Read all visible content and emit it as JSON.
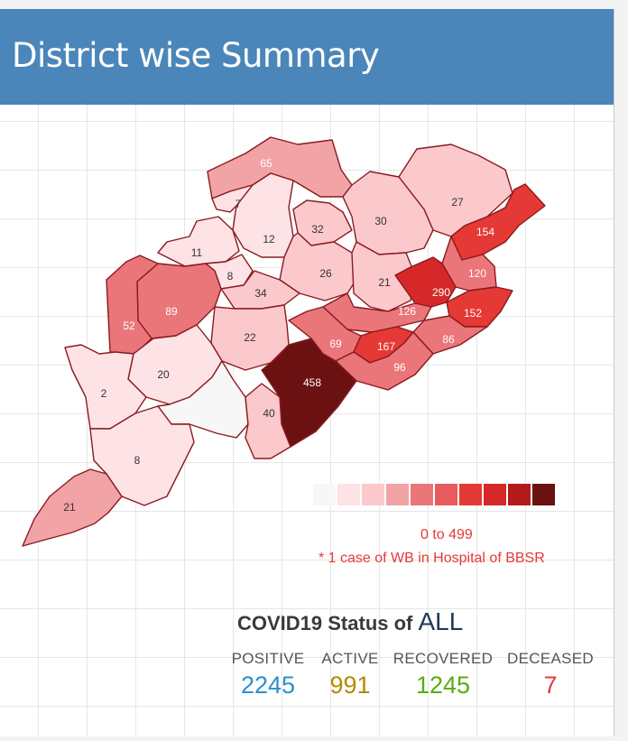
{
  "header": {
    "title": "District wise Summary"
  },
  "map": {
    "legend": {
      "colors": [
        "#f7f7f7",
        "#fde3e5",
        "#fbc9cc",
        "#f2a3a6",
        "#ea7679",
        "#e75b5e",
        "#e53935",
        "#d62828",
        "#b31b1b",
        "#6b1111"
      ],
      "range": "0 to 499",
      "note": "* 1 case of WB in Hospital of BBSR"
    },
    "districts": [
      {
        "label": "65",
        "color": "#f2a3a6",
        "text_color": "#ffffff"
      },
      {
        "label": "7",
        "color": "#fde3e5",
        "text_color": "#333333"
      },
      {
        "label": "27",
        "color": "#fbc9cc",
        "text_color": "#333333"
      },
      {
        "label": "30",
        "color": "#fbc9cc",
        "text_color": "#333333"
      },
      {
        "label": "32",
        "color": "#fbc9cc",
        "text_color": "#333333"
      },
      {
        "label": "12",
        "color": "#fde3e5",
        "text_color": "#333333"
      },
      {
        "label": "11",
        "color": "#fde3e5",
        "text_color": "#333333"
      },
      {
        "label": "154",
        "color": "#e53935",
        "text_color": "#ffffff"
      },
      {
        "label": "8",
        "color": "#fde3e5",
        "text_color": "#333333"
      },
      {
        "label": "26",
        "color": "#fbc9cc",
        "text_color": "#333333"
      },
      {
        "label": "21",
        "color": "#fbc9cc",
        "text_color": "#333333"
      },
      {
        "label": "120",
        "color": "#ea7679",
        "text_color": "#ffffff"
      },
      {
        "label": "290",
        "color": "#d62828",
        "text_color": "#ffffff"
      },
      {
        "label": "34",
        "color": "#fbc9cc",
        "text_color": "#333333"
      },
      {
        "label": "89",
        "color": "#ea7679",
        "text_color": "#ffffff"
      },
      {
        "label": "52",
        "color": "#ea7679",
        "text_color": "#ffffff"
      },
      {
        "label": "126",
        "color": "#ea7679",
        "text_color": "#ffffff"
      },
      {
        "label": "152",
        "color": "#e53935",
        "text_color": "#ffffff"
      },
      {
        "label": "22",
        "color": "#fbc9cc",
        "text_color": "#333333"
      },
      {
        "label": "69",
        "color": "#ea7679",
        "text_color": "#ffffff"
      },
      {
        "label": "167",
        "color": "#e53935",
        "text_color": "#ffffff"
      },
      {
        "label": "86",
        "color": "#ea7679",
        "text_color": "#ffffff"
      },
      {
        "label": "96",
        "color": "#ea7679",
        "text_color": "#ffffff"
      },
      {
        "label": "20",
        "color": "#fde3e5",
        "text_color": "#333333"
      },
      {
        "label": "458",
        "color": "#6b1111",
        "text_color": "#ffffff"
      },
      {
        "label": "2",
        "color": "#fde3e5",
        "text_color": "#333333"
      },
      {
        "label": "",
        "color": "#f7f7f7",
        "text_color": "#333333"
      },
      {
        "label": "40",
        "color": "#fbc9cc",
        "text_color": "#333333"
      },
      {
        "label": "8",
        "color": "#fde3e5",
        "text_color": "#333333"
      },
      {
        "label": "21",
        "color": "#f2a3a6",
        "text_color": "#333333"
      }
    ]
  },
  "status": {
    "title_prefix": "COVID19 Status of",
    "scope": "ALL",
    "items": [
      {
        "label": "POSITIVE",
        "value": "2245",
        "color": "#2b8fcf"
      },
      {
        "label": "ACTIVE",
        "value": "991",
        "color": "#b38b00"
      },
      {
        "label": "RECOVERED",
        "value": "1245",
        "color": "#5aab10"
      },
      {
        "label": "DECEASED",
        "value": "7",
        "color": "#e53935"
      }
    ]
  }
}
